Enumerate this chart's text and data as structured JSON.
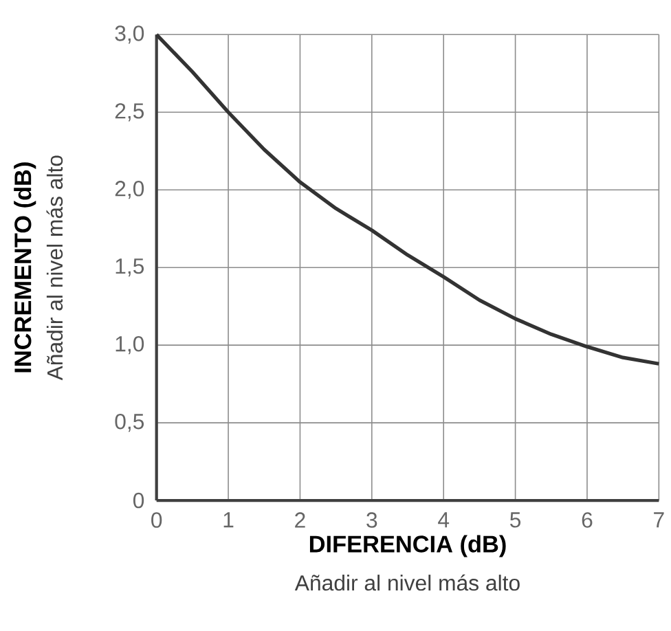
{
  "chart_data": {
    "type": "line",
    "xlabel": "DIFERENCIA (dB)",
    "ylabel": "INCREMENTO (dB)",
    "annotations": [
      "Añadir al nivel más alto",
      "Añadir al nivel más alto"
    ],
    "x": [
      0,
      0.5,
      1,
      1.5,
      2,
      2.5,
      3,
      3.5,
      4,
      4.5,
      5,
      5.5,
      6,
      6.5,
      7
    ],
    "series": [
      {
        "color": "#333333",
        "values": [
          3.0,
          2.76,
          2.5,
          2.26,
          2.05,
          1.88,
          1.74,
          1.58,
          1.44,
          1.29,
          1.17,
          1.07,
          0.99,
          0.92,
          0.88
        ]
      }
    ],
    "xlim": [
      0,
      7
    ],
    "xticks": [
      0,
      1,
      2,
      3,
      4,
      5,
      6,
      7
    ],
    "ylim": [
      0,
      3
    ],
    "yticks": [
      0,
      {
        "value": 0.5,
        "label": "0,5"
      },
      {
        "value": 1.0,
        "label": "1,0"
      },
      {
        "value": 1.5,
        "label": "1,5"
      },
      {
        "value": 2.0,
        "label": "2,0"
      },
      {
        "value": 2.5,
        "label": "2,5"
      },
      {
        "value": 3.0,
        "label": "3,0"
      }
    ],
    "grid": true,
    "marker": "none",
    "line_style": "solid"
  }
}
